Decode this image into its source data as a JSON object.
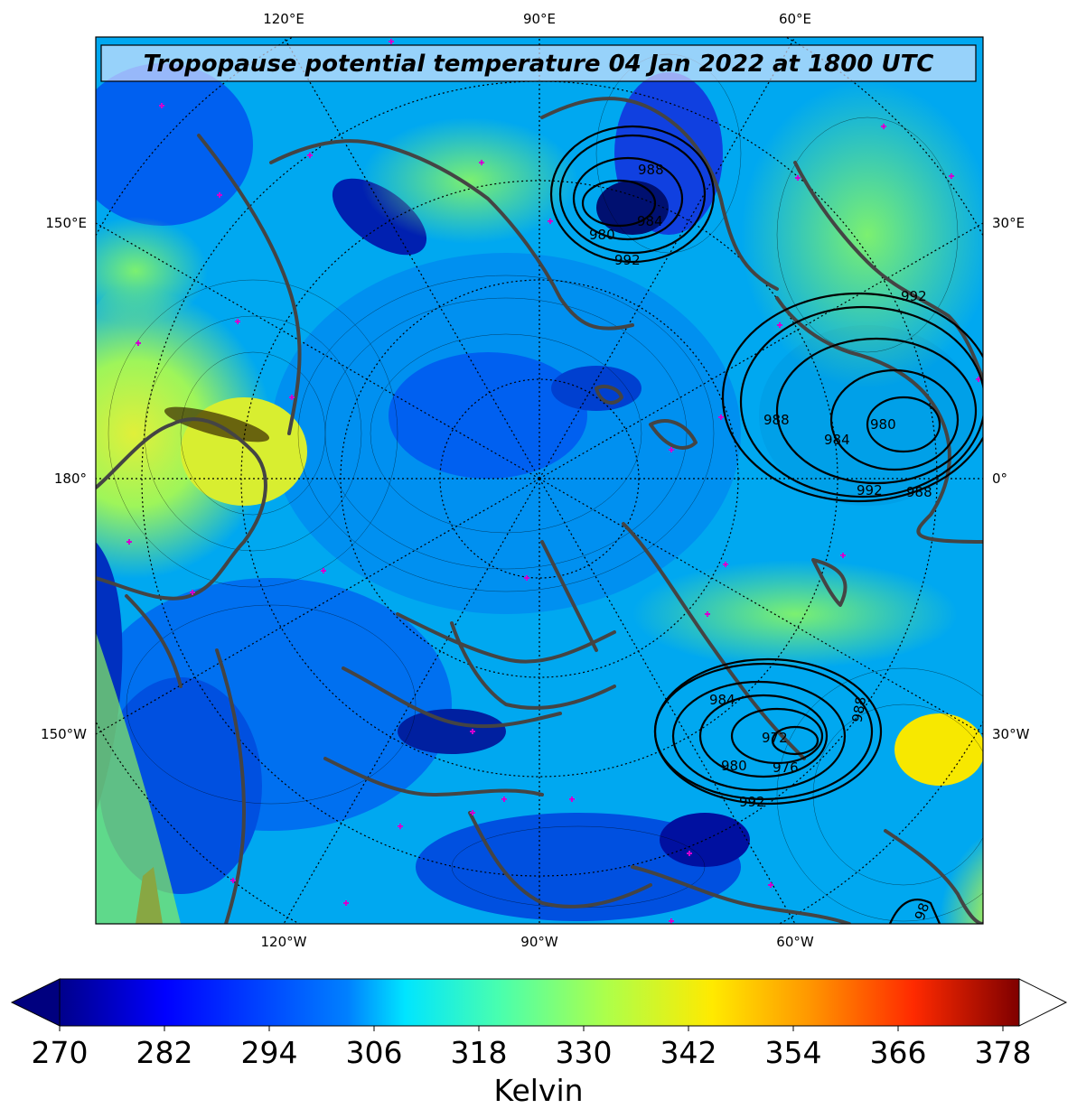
{
  "map": {
    "title": "Tropopause potential temperature 04 Jan 2022 at 1800 UTC",
    "labels": {
      "top": [
        "120°E",
        "90°E",
        "60°E"
      ],
      "bottom": [
        "120°W",
        "90°W",
        "60°W"
      ],
      "left": [
        "150°E",
        "180°",
        "150°W"
      ],
      "right": [
        "30°E",
        "0°",
        "30°W"
      ]
    },
    "isobar_labels": [
      "988",
      "984",
      "980",
      "992",
      "992",
      "988",
      "984",
      "980",
      "992",
      "988",
      "984",
      "980",
      "976",
      "972",
      "988",
      "992",
      "98"
    ]
  },
  "colorbar": {
    "ticks": [
      "270",
      "282",
      "294",
      "306",
      "318",
      "330",
      "342",
      "354",
      "366",
      "378"
    ],
    "label": "Kelvin",
    "colors": [
      "#00007f",
      "#0000ff",
      "#007fff",
      "#00e5ff",
      "#4affad",
      "#adff4a",
      "#ffea00",
      "#ff8c00",
      "#ff1a00",
      "#7f0000"
    ]
  }
}
